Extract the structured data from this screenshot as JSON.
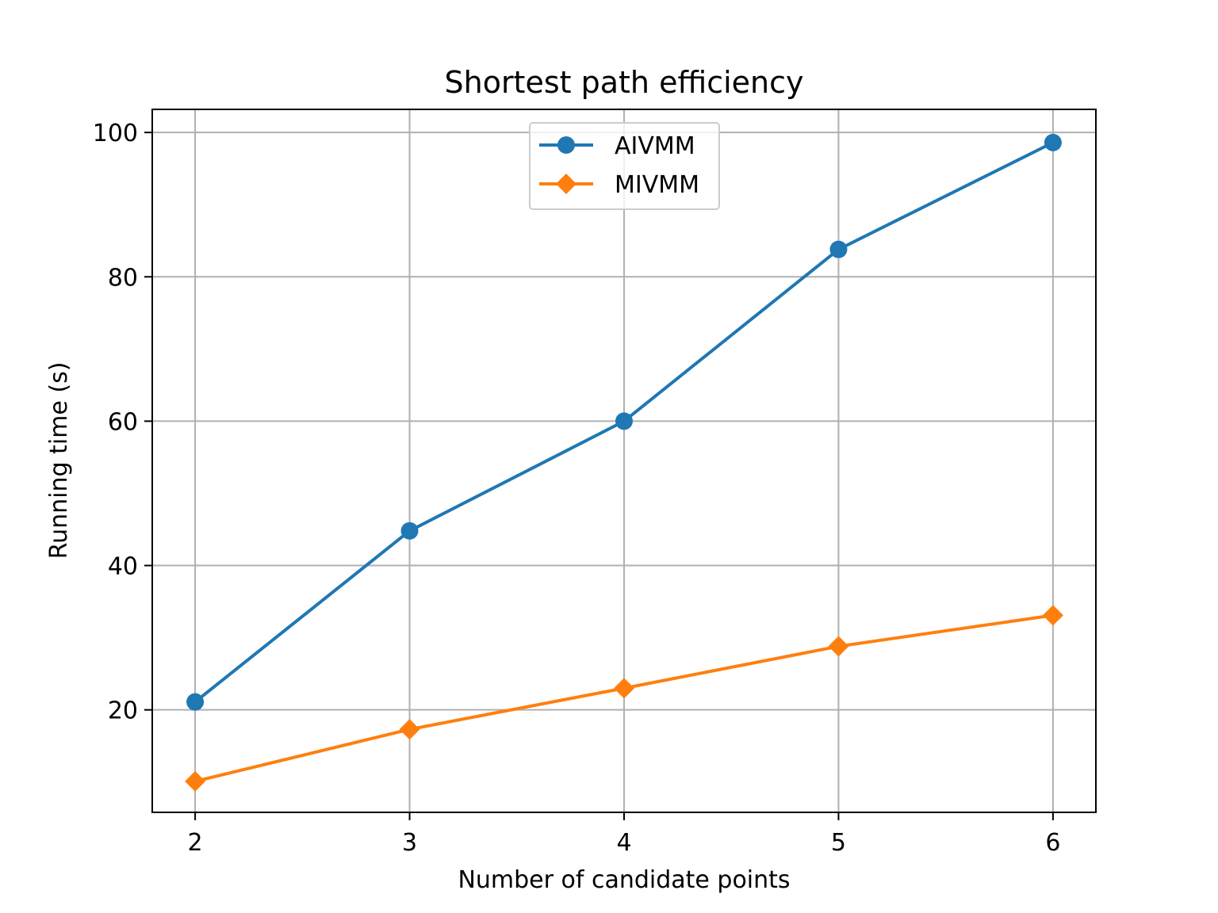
{
  "chart_data": {
    "type": "line",
    "title": "Shortest path efficiency",
    "xlabel": "Number of candidate points",
    "ylabel": "Running time (s)",
    "x": [
      2,
      3,
      4,
      5,
      6
    ],
    "xlim": [
      1.8,
      6.2
    ],
    "ylim": [
      5.8,
      103.2
    ],
    "xticks": [
      "2",
      "3",
      "4",
      "5",
      "6"
    ],
    "yticks": [
      "20",
      "40",
      "60",
      "80",
      "100"
    ],
    "grid": true,
    "legend_position": "top-center",
    "series": [
      {
        "name": "AIVMM",
        "values": [
          21.1,
          44.8,
          60.0,
          83.8,
          98.6
        ],
        "color": "#1f77b4",
        "marker": "circle"
      },
      {
        "name": "MIVMM",
        "values": [
          10.1,
          17.3,
          23.0,
          28.8,
          33.1
        ],
        "color": "#ff7f0e",
        "marker": "diamond"
      }
    ]
  }
}
